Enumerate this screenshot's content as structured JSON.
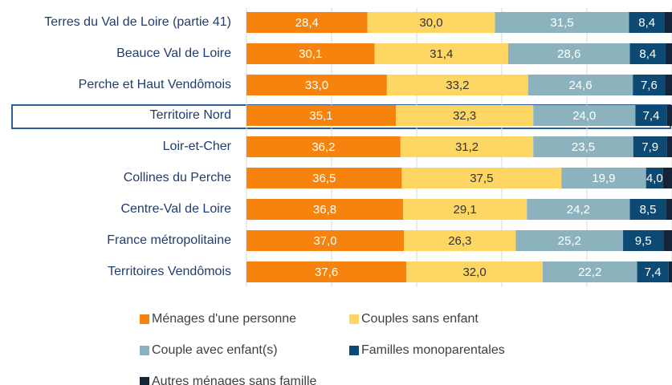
{
  "chart_data": {
    "type": "stacked-barh",
    "categories": [
      "Terres du Val de Loire (partie 41)",
      "Beauce Val de Loire",
      "Perche et Haut Vendômois",
      "Territoire Nord",
      "Loir-et-Cher",
      "Collines du Perche",
      "Centre-Val de Loire",
      "France métropolitaine",
      "Territoires Vendômois"
    ],
    "xlim": [
      0,
      100
    ],
    "xticks": [
      0,
      20,
      40,
      60,
      80,
      100
    ],
    "grid": true,
    "series": [
      {
        "name": "Ménages d'une personne",
        "color": "#f7830f",
        "values": [
          28.4,
          30.1,
          33.0,
          35.1,
          36.2,
          36.5,
          36.8,
          37.0,
          37.6
        ],
        "value_labels": [
          "28,4",
          "30,1",
          "33,0",
          "35,1",
          "36,2",
          "36,5",
          "36,8",
          "37,0",
          "37,6"
        ]
      },
      {
        "name": "Couples sans enfant",
        "color": "#fdd663",
        "values": [
          30.0,
          31.4,
          33.2,
          32.3,
          31.2,
          37.5,
          29.1,
          26.3,
          32.0
        ],
        "value_labels": [
          "30,0",
          "31,4",
          "33,2",
          "32,3",
          "31,2",
          "37,5",
          "29,1",
          "26,3",
          "32,0"
        ]
      },
      {
        "name": "Couple avec enfant(s)",
        "color": "#8cb3bd",
        "values": [
          31.5,
          28.6,
          24.6,
          24.0,
          23.5,
          19.9,
          24.2,
          25.2,
          22.2
        ],
        "value_labels": [
          "31,5",
          "28,6",
          "24,6",
          "24,0",
          "23,5",
          "19,9",
          "24,2",
          "25,2",
          "22,2"
        ]
      },
      {
        "name": "Familles monoparentales",
        "color": "#0d4a73",
        "values": [
          8.4,
          8.4,
          7.6,
          7.4,
          7.9,
          4.0,
          8.5,
          9.5,
          7.4
        ],
        "value_labels": [
          "8,4",
          "8,4",
          "7,6",
          "7,4",
          "7,9",
          "4,0",
          "8,5",
          "9,5",
          "7,4"
        ]
      },
      {
        "name": "Autres ménages sans famille",
        "color": "#16243a",
        "values": [
          1.7,
          1.5,
          1.6,
          1.2,
          1.2,
          2.1,
          1.4,
          2.0,
          0.8
        ]
      }
    ]
  }
}
